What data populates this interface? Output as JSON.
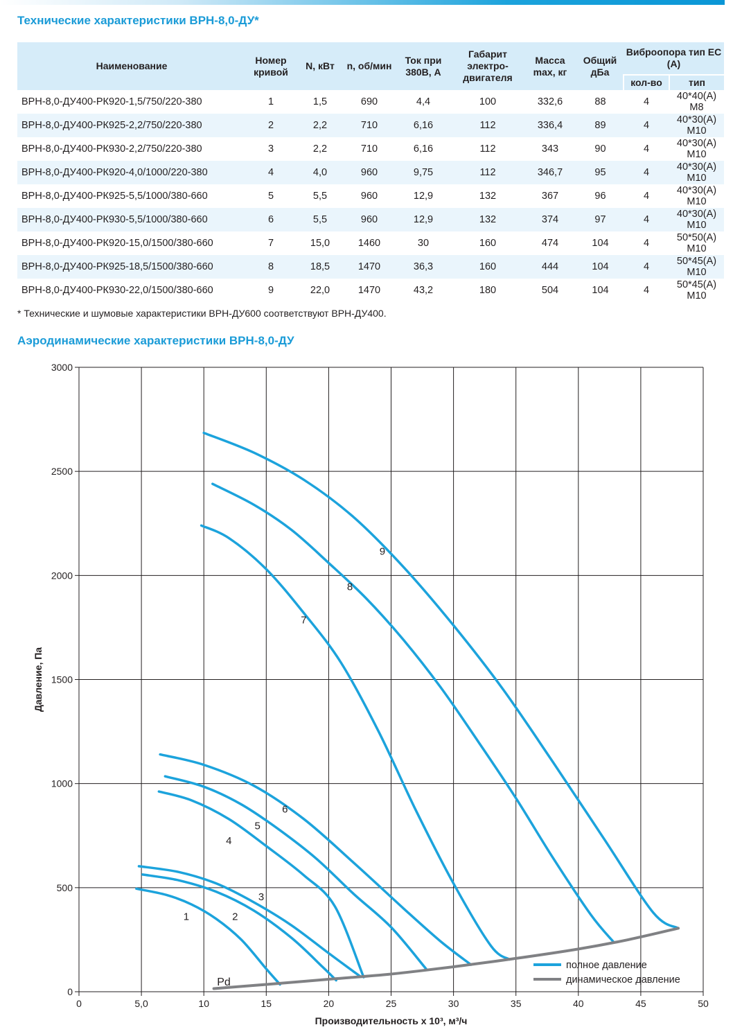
{
  "header": {
    "table_title": "Технические характеристики ВРН-8,0-ДУ*",
    "chart_title": "Аэродинамические характеристики ВРН-8,0-ДУ",
    "footnote": "* Технические и шумовые характеристики ВРН-ДУ600 соответствуют ВРН-ДУ400."
  },
  "table": {
    "headers": {
      "name": "Наименование",
      "curve": "Номер кривой",
      "power": "N, кВт",
      "rpm": "n, об/мин",
      "current": "Ток при 380В, А",
      "motor": "Габарит электро-двигателя",
      "mass": "Масса max, кг",
      "noise": "Общий дБа",
      "vibro": "Виброопора тип ЕС (А)",
      "vibro_count": "кол-во",
      "vibro_type": "тип"
    },
    "rows": [
      [
        "ВРН-8,0-ДУ400-РК920-1,5/750/220-380",
        "1",
        "1,5",
        "690",
        "4,4",
        "100",
        "332,6",
        "88",
        "4",
        "40*40(А) М8"
      ],
      [
        "ВРН-8,0-ДУ400-РК925-2,2/750/220-380",
        "2",
        "2,2",
        "710",
        "6,16",
        "112",
        "336,4",
        "89",
        "4",
        "40*30(А) М10"
      ],
      [
        "ВРН-8,0-ДУ400-РК930-2,2/750/220-380",
        "3",
        "2,2",
        "710",
        "6,16",
        "112",
        "343",
        "90",
        "4",
        "40*30(А) М10"
      ],
      [
        "ВРН-8,0-ДУ400-РК920-4,0/1000/220-380",
        "4",
        "4,0",
        "960",
        "9,75",
        "112",
        "346,7",
        "95",
        "4",
        "40*30(А) М10"
      ],
      [
        "ВРН-8,0-ДУ400-РК925-5,5/1000/380-660",
        "5",
        "5,5",
        "960",
        "12,9",
        "132",
        "367",
        "96",
        "4",
        "40*30(А) М10"
      ],
      [
        "ВРН-8,0-ДУ400-РК930-5,5/1000/380-660",
        "6",
        "5,5",
        "960",
        "12,9",
        "132",
        "374",
        "97",
        "4",
        "40*30(А) М10"
      ],
      [
        "ВРН-8,0-ДУ400-РК920-15,0/1500/380-660",
        "7",
        "15,0",
        "1460",
        "30",
        "160",
        "474",
        "104",
        "4",
        "50*50(А) М10"
      ],
      [
        "ВРН-8,0-ДУ400-РК925-18,5/1500/380-660",
        "8",
        "18,5",
        "1470",
        "36,3",
        "160",
        "444",
        "104",
        "4",
        "50*45(А) М10"
      ],
      [
        "ВРН-8,0-ДУ400-РК930-22,0/1500/380-660",
        "9",
        "22,0",
        "1470",
        "43,2",
        "180",
        "504",
        "104",
        "4",
        "50*45(А) М10"
      ]
    ]
  },
  "colors": {
    "accent": "#1a9bd7",
    "full_pressure": "#1ca3dc",
    "dynamic_pressure": "#808184",
    "grid": "#231f20"
  },
  "chart_data": {
    "type": "line",
    "xlabel": "Производительность х 10³, м³/ч",
    "ylabel": "Давление, Па",
    "xlim": [
      0,
      50
    ],
    "ylim": [
      0,
      3000
    ],
    "x_ticks": [
      0,
      5,
      10,
      15,
      20,
      25,
      30,
      35,
      40,
      45,
      50
    ],
    "x_tick_labels": [
      "0",
      "5,0",
      "10",
      "15",
      "20",
      "25",
      "30",
      "35",
      "40",
      "45",
      "50"
    ],
    "y_ticks": [
      0,
      500,
      1000,
      1500,
      2000,
      2500,
      3000
    ],
    "y_tick_labels": [
      "0",
      "500",
      "1000",
      "1500",
      "2000",
      "2500",
      "3000"
    ],
    "grid": true,
    "legend_position": "bottom-right",
    "legend": [
      {
        "label": "полное давление",
        "color": "#1ca3dc"
      },
      {
        "label": "динамическое давление",
        "color": "#808184"
      }
    ],
    "series": [
      {
        "name": "1",
        "kind": "full",
        "label_at": [
          8.6,
          365
        ],
        "points": [
          [
            4.6,
            495
          ],
          [
            7,
            465
          ],
          [
            9,
            420
          ],
          [
            11,
            350
          ],
          [
            13,
            250
          ],
          [
            15,
            110
          ],
          [
            16.1,
            35
          ]
        ]
      },
      {
        "name": "2",
        "kind": "full",
        "label_at": [
          12.5,
          365
        ],
        "points": [
          [
            5.1,
            563
          ],
          [
            8,
            535
          ],
          [
            11,
            480
          ],
          [
            14,
            390
          ],
          [
            17,
            260
          ],
          [
            19.5,
            120
          ],
          [
            20.6,
            55
          ]
        ]
      },
      {
        "name": "3",
        "kind": "full",
        "label_at": [
          14.6,
          460
        ],
        "points": [
          [
            4.8,
            603
          ],
          [
            8,
            575
          ],
          [
            11,
            520
          ],
          [
            14,
            430
          ],
          [
            17,
            320
          ],
          [
            20,
            185
          ],
          [
            22.5,
            75
          ]
        ]
      },
      {
        "name": "4",
        "kind": "full",
        "label_at": [
          12,
          730
        ],
        "points": [
          [
            6.4,
            962
          ],
          [
            9,
            920
          ],
          [
            12,
            830
          ],
          [
            15,
            700
          ],
          [
            18,
            560
          ],
          [
            20.5,
            410
          ],
          [
            22.8,
            70
          ]
        ]
      },
      {
        "name": "5",
        "kind": "full",
        "label_at": [
          14.3,
          800
        ],
        "points": [
          [
            6.9,
            1035
          ],
          [
            10,
            985
          ],
          [
            13,
            900
          ],
          [
            16,
            780
          ],
          [
            19,
            640
          ],
          [
            22,
            470
          ],
          [
            25,
            310
          ],
          [
            27.8,
            110
          ]
        ]
      },
      {
        "name": "6",
        "kind": "full",
        "label_at": [
          16.5,
          880
        ],
        "points": [
          [
            6.5,
            1140
          ],
          [
            10,
            1090
          ],
          [
            14,
            990
          ],
          [
            18,
            830
          ],
          [
            22,
            620
          ],
          [
            26,
            400
          ],
          [
            29,
            240
          ],
          [
            31.4,
            130
          ]
        ]
      },
      {
        "name": "7",
        "kind": "full",
        "label_at": [
          18,
          1790
        ],
        "points": [
          [
            9.8,
            2240
          ],
          [
            12,
            2180
          ],
          [
            15,
            2030
          ],
          [
            18,
            1820
          ],
          [
            21,
            1580
          ],
          [
            24,
            1250
          ],
          [
            27,
            870
          ],
          [
            30,
            520
          ],
          [
            33,
            220
          ],
          [
            34.5,
            155
          ]
        ]
      },
      {
        "name": "8",
        "kind": "full",
        "label_at": [
          21.7,
          1950
        ],
        "points": [
          [
            10.7,
            2440
          ],
          [
            14,
            2340
          ],
          [
            17,
            2220
          ],
          [
            20,
            2060
          ],
          [
            23,
            1890
          ],
          [
            26,
            1690
          ],
          [
            29,
            1460
          ],
          [
            32,
            1200
          ],
          [
            35,
            930
          ],
          [
            38,
            640
          ],
          [
            41,
            370
          ],
          [
            42.8,
            240
          ]
        ]
      },
      {
        "name": "9",
        "kind": "full",
        "label_at": [
          24.3,
          2120
        ],
        "points": [
          [
            10,
            2685
          ],
          [
            14,
            2590
          ],
          [
            18,
            2460
          ],
          [
            22,
            2280
          ],
          [
            26,
            2040
          ],
          [
            30,
            1760
          ],
          [
            34,
            1450
          ],
          [
            38,
            1100
          ],
          [
            42,
            740
          ],
          [
            46,
            380
          ],
          [
            48,
            305
          ]
        ]
      },
      {
        "name": "Pd",
        "kind": "dynamic",
        "label_at": [
          11.6,
          50
        ],
        "points": [
          [
            10.8,
            15
          ],
          [
            15,
            35
          ],
          [
            20,
            60
          ],
          [
            25,
            85
          ],
          [
            30,
            120
          ],
          [
            35,
            160
          ],
          [
            40,
            205
          ],
          [
            44,
            250
          ],
          [
            48,
            305
          ]
        ]
      }
    ]
  }
}
